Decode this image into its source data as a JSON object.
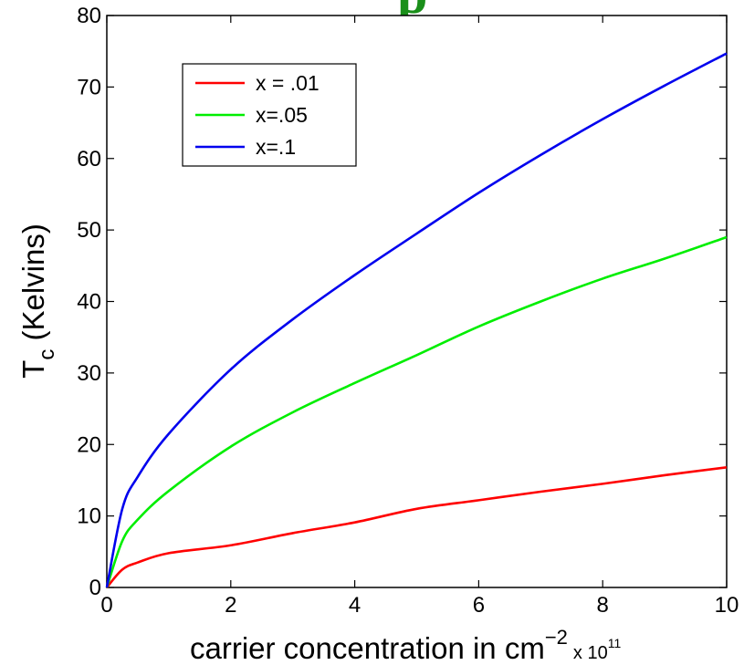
{
  "colors": {
    "series_red": "#ff0000",
    "series_green": "#00ee00",
    "series_blue": "#0000ee",
    "partial_title": "#1a8f1a"
  },
  "partial_title_glyph": "p",
  "chart_data": {
    "type": "line",
    "xlabel": "carrier concentration in cm",
    "xlabel_superscript": "−2",
    "x_multiplier": "x 10",
    "x_multiplier_exponent": "11",
    "ylabel_main": "T",
    "ylabel_sub": "c",
    "ylabel_rest": " (Kelvins)",
    "xlim": [
      0,
      10
    ],
    "ylim": [
      0,
      80
    ],
    "x_ticks": [
      "0",
      "2",
      "4",
      "6",
      "8",
      "10"
    ],
    "y_ticks": [
      "0",
      "10",
      "20",
      "30",
      "40",
      "50",
      "60",
      "70",
      "80"
    ],
    "grid": false,
    "legend_position": "top-left",
    "x": [
      0,
      0.25,
      0.5,
      1,
      2,
      3,
      4,
      5,
      6,
      7,
      8,
      9,
      10
    ],
    "series": [
      {
        "name": "x = .01",
        "values": [
          0,
          2.5,
          3.5,
          4.8,
          5.9,
          7.6,
          9.1,
          11.0,
          12.2,
          13.4,
          14.5,
          15.7,
          16.8
        ]
      },
      {
        "name": "x=.05",
        "values": [
          0,
          6.5,
          9.5,
          13.5,
          19.7,
          24.5,
          28.6,
          32.5,
          36.5,
          40.0,
          43.2,
          46.0,
          49.0
        ]
      },
      {
        "name": "x=.1",
        "values": [
          0,
          11.0,
          15.5,
          21.5,
          30.5,
          37.5,
          43.7,
          49.5,
          55.2,
          60.5,
          65.5,
          70.2,
          74.7
        ]
      }
    ]
  }
}
